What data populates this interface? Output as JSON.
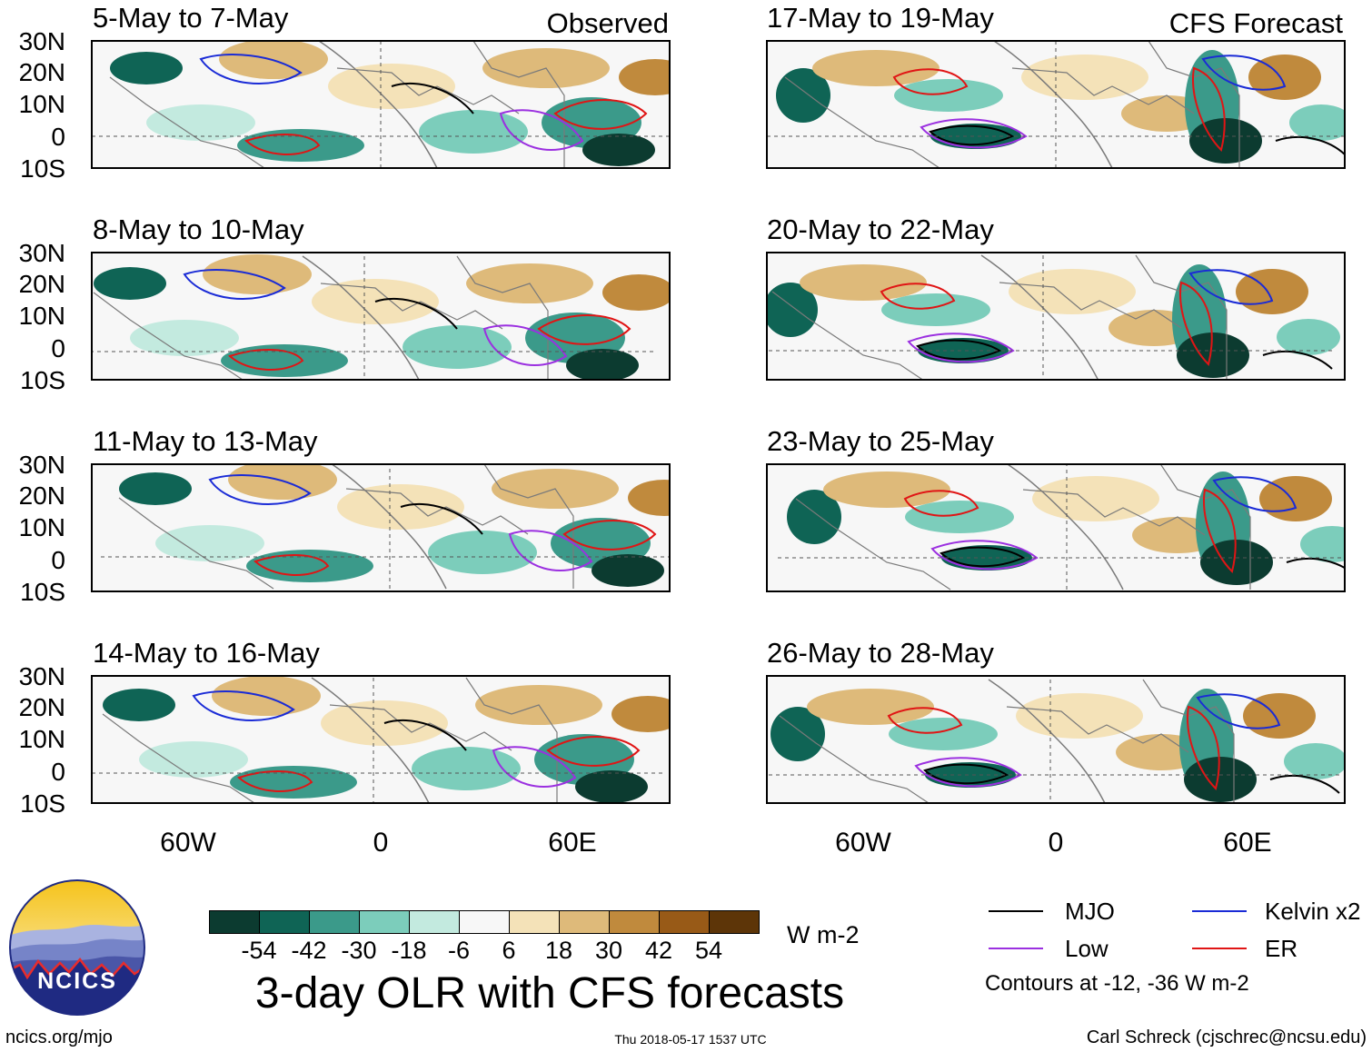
{
  "observed_label": "Observed",
  "forecast_label": "CFS Forecast",
  "lat_labels": [
    "30N",
    "20N",
    "10N",
    "0",
    "10S"
  ],
  "lon_labels": [
    "60W",
    "0",
    "60E"
  ],
  "panels_left": [
    {
      "title": "5-May to 7-May"
    },
    {
      "title": "8-May to 10-May"
    },
    {
      "title": "11-May to 13-May"
    },
    {
      "title": "14-May to 16-May"
    }
  ],
  "panels_right": [
    {
      "title": "17-May to 19-May"
    },
    {
      "title": "20-May to 22-May"
    },
    {
      "title": "23-May to 25-May"
    },
    {
      "title": "26-May to 28-May"
    }
  ],
  "colorbar": {
    "unit": "W m-2",
    "ticks": [
      "-54",
      "-42",
      "-30",
      "-18",
      "-6",
      "6",
      "18",
      "30",
      "42",
      "54"
    ],
    "colors": [
      "#0c3b30",
      "#0f6455",
      "#3b9a8a",
      "#7ccdbb",
      "#c3eadf",
      "#f7f7f7",
      "#f4e2b8",
      "#deba7a",
      "#c08a3d",
      "#985a17",
      "#5d3508"
    ]
  },
  "legend": {
    "items": [
      {
        "label": "MJO",
        "color": "#000000"
      },
      {
        "label": "Kelvin x2",
        "color": "#1a2bd6"
      },
      {
        "label": "Low",
        "color": "#9b30e0"
      },
      {
        "label": "ER",
        "color": "#e01515"
      }
    ],
    "note": "Contours at -12, -36 W m-2"
  },
  "main_title": "3-day OLR with CFS forecasts",
  "logo_text": "NCICS",
  "footer": {
    "url": "ncics.org/mjo",
    "timestamp": "Thu 2018-05-17 1537 UTC",
    "credit": "Carl Schreck (cjschrec@ncsu.edu)"
  }
}
